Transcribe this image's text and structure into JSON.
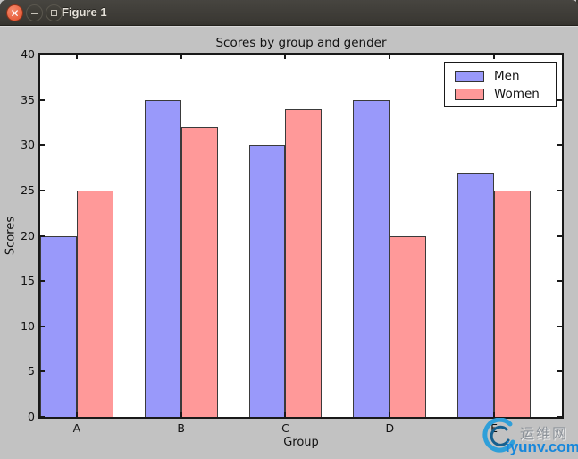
{
  "window": {
    "title": "Figure 1",
    "buttons": {
      "close": "close",
      "minimize": "minimize",
      "maximize": "maximize"
    }
  },
  "chart_data": {
    "type": "bar",
    "title": "Scores by group and gender",
    "xlabel": "Group",
    "ylabel": "Scores",
    "categories": [
      "A",
      "B",
      "C",
      "D",
      "E"
    ],
    "series": [
      {
        "name": "Men",
        "color": "#9999fa",
        "values": [
          20,
          35,
          30,
          35,
          27
        ]
      },
      {
        "name": "Women",
        "color": "#ff9999",
        "values": [
          25,
          32,
          34,
          20,
          25
        ]
      }
    ],
    "bar_width": 0.35,
    "xlim": [
      0,
      5
    ],
    "ylim": [
      0,
      40
    ],
    "yticks": [
      0,
      5,
      10,
      15,
      20,
      25,
      30,
      35,
      40
    ],
    "grid": false,
    "legend_position": "upper right",
    "plot_bg": "#ffffff",
    "figure_bg": "#c2c2c2",
    "bar_edge_color": "#3a3a3a"
  },
  "watermark": {
    "logo": "swirl-logo",
    "line1": "运维网",
    "line2": "iyunv.com",
    "accent_color": "#1787db"
  }
}
